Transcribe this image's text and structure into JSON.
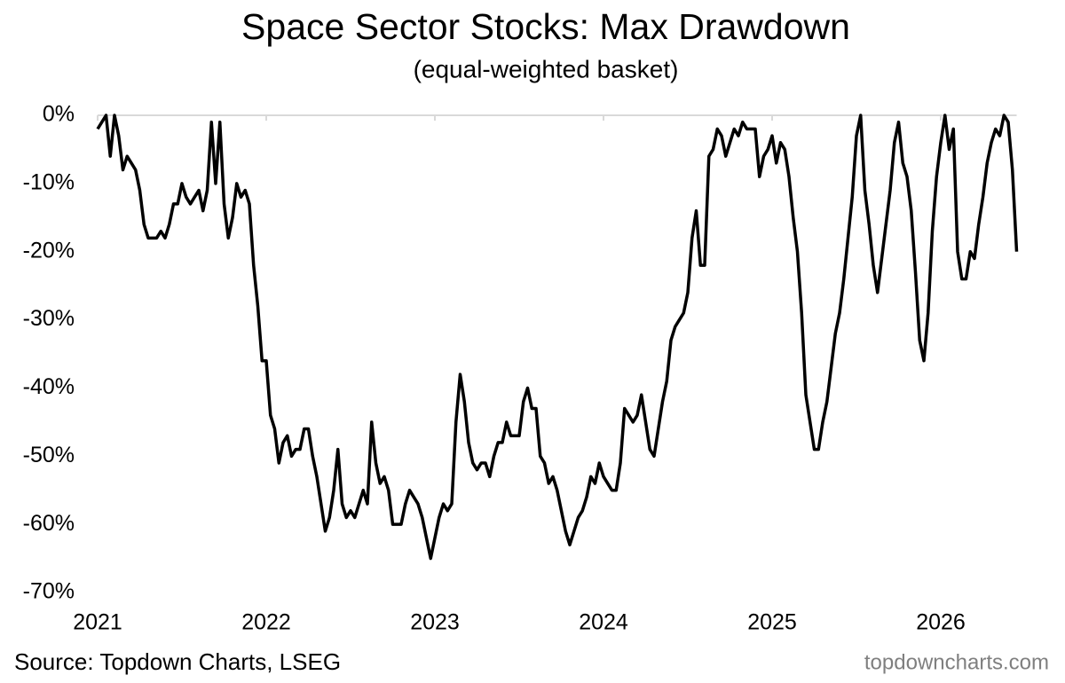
{
  "chart_data": {
    "type": "line",
    "title": "Space Sector Stocks: Max Drawdown",
    "subtitle": "(equal-weighted basket)",
    "source": "Source: Topdown Charts, LSEG",
    "watermark": "topdowncharts.com",
    "xlim": [
      2021,
      2026.45
    ],
    "xticks": [
      2021,
      2022,
      2023,
      2024,
      2025,
      2026
    ],
    "ylim": [
      -70,
      0
    ],
    "yticks": [
      {
        "value": -70,
        "label": "-70%"
      },
      {
        "value": -60,
        "label": "-60%"
      },
      {
        "value": -50,
        "label": "-50%"
      },
      {
        "value": -40,
        "label": "-40%"
      },
      {
        "value": -30,
        "label": "-30%"
      },
      {
        "value": -20,
        "label": "-20%"
      },
      {
        "value": -10,
        "label": "-10%"
      },
      {
        "value": 0,
        "label": "0%"
      }
    ],
    "grid": false,
    "x": [
      2021,
      2021.025,
      2021.05,
      2021.075,
      2021.1,
      2021.125,
      2021.15,
      2021.175,
      2021.2,
      2021.225,
      2021.25,
      2021.275,
      2021.3,
      2021.325,
      2021.35,
      2021.375,
      2021.4,
      2021.425,
      2021.45,
      2021.475,
      2021.5,
      2021.525,
      2021.55,
      2021.575,
      2021.6,
      2021.625,
      2021.65,
      2021.675,
      2021.7,
      2021.725,
      2021.75,
      2021.775,
      2021.8,
      2021.825,
      2021.85,
      2021.875,
      2021.9,
      2021.925,
      2021.95,
      2021.975,
      2022,
      2022.025,
      2022.05,
      2022.075,
      2022.1,
      2022.125,
      2022.15,
      2022.175,
      2022.2,
      2022.225,
      2022.25,
      2022.275,
      2022.3,
      2022.325,
      2022.35,
      2022.375,
      2022.4,
      2022.425,
      2022.45,
      2022.475,
      2022.5,
      2022.525,
      2022.55,
      2022.575,
      2022.6,
      2022.625,
      2022.65,
      2022.675,
      2022.7,
      2022.725,
      2022.75,
      2022.775,
      2022.8,
      2022.825,
      2022.85,
      2022.875,
      2022.9,
      2022.925,
      2022.95,
      2022.975,
      2023,
      2023.025,
      2023.05,
      2023.075,
      2023.1,
      2023.125,
      2023.15,
      2023.175,
      2023.2,
      2023.225,
      2023.25,
      2023.275,
      2023.3,
      2023.325,
      2023.35,
      2023.375,
      2023.4,
      2023.425,
      2023.45,
      2023.475,
      2023.5,
      2023.525,
      2023.55,
      2023.575,
      2023.6,
      2023.625,
      2023.65,
      2023.675,
      2023.7,
      2023.725,
      2023.75,
      2023.775,
      2023.8,
      2023.825,
      2023.85,
      2023.875,
      2023.9,
      2023.925,
      2023.95,
      2023.975,
      2024,
      2024.025,
      2024.05,
      2024.075,
      2024.1,
      2024.125,
      2024.15,
      2024.175,
      2024.2,
      2024.225,
      2024.25,
      2024.275,
      2024.3,
      2024.325,
      2024.35,
      2024.375,
      2024.4,
      2024.425,
      2024.45,
      2024.475,
      2024.5,
      2024.525,
      2024.55,
      2024.575,
      2024.6,
      2024.625,
      2024.65,
      2024.675,
      2024.7,
      2024.725,
      2024.75,
      2024.775,
      2024.8,
      2024.825,
      2024.85,
      2024.875,
      2024.9,
      2024.925,
      2024.95,
      2024.975,
      2025,
      2025.025,
      2025.05,
      2025.075,
      2025.1,
      2025.125,
      2025.15,
      2025.175,
      2025.2,
      2025.225,
      2025.25,
      2025.275,
      2025.3,
      2025.325,
      2025.35,
      2025.375,
      2025.4,
      2025.425,
      2025.45,
      2025.475,
      2025.5,
      2025.525,
      2025.55,
      2025.575,
      2025.6,
      2025.625,
      2025.65,
      2025.675,
      2025.7,
      2025.725,
      2025.75,
      2025.775,
      2025.8,
      2025.825,
      2025.85,
      2025.875,
      2025.9,
      2025.925,
      2025.95,
      2025.975,
      2026,
      2026.025,
      2026.05,
      2026.075,
      2026.1,
      2026.125,
      2026.15,
      2026.175,
      2026.2,
      2026.225,
      2026.25,
      2026.275,
      2026.3,
      2026.325,
      2026.35,
      2026.375,
      2026.4,
      2026.425,
      2026.45
    ],
    "series": [
      {
        "name": "Max Drawdown",
        "color": "#000000",
        "values": [
          -2,
          -1,
          0,
          -6,
          0,
          -3,
          -8,
          -6,
          -7,
          -8,
          -11,
          -16,
          -18,
          -18,
          -18,
          -17,
          -18,
          -16,
          -13,
          -13,
          -10,
          -12,
          -13,
          -12,
          -11,
          -14,
          -11,
          -1,
          -10,
          -1,
          -13,
          -18,
          -15,
          -10,
          -12,
          -11,
          -13,
          -22,
          -28,
          -36,
          -36,
          -44,
          -46,
          -51,
          -48,
          -47,
          -50,
          -49,
          -49,
          -46,
          -46,
          -50,
          -53,
          -57,
          -61,
          -59,
          -55,
          -49,
          -57,
          -59,
          -58,
          -59,
          -57,
          -55,
          -57,
          -45,
          -51,
          -54,
          -53,
          -55,
          -60,
          -60,
          -60,
          -57,
          -55,
          -56,
          -57,
          -59,
          -62,
          -65,
          -62,
          -59,
          -57,
          -58,
          -57,
          -45,
          -38,
          -42,
          -48,
          -51,
          -52,
          -51,
          -51,
          -53,
          -50,
          -48,
          -48,
          -45,
          -47,
          -47,
          -47,
          -42,
          -40,
          -43,
          -43,
          -50,
          -51,
          -54,
          -53,
          -55,
          -58,
          -61,
          -63,
          -61,
          -59,
          -58,
          -56,
          -53,
          -54,
          -51,
          -53,
          -54,
          -55,
          -55,
          -51,
          -43,
          -44,
          -45,
          -44,
          -41,
          -45,
          -49,
          -50,
          -46,
          -42,
          -39,
          -33,
          -31,
          -30,
          -29,
          -26,
          -18,
          -14,
          -22,
          -22,
          -6,
          -5,
          -2,
          -3,
          -6,
          -4,
          -2,
          -3,
          -1,
          -2,
          -2,
          -2,
          -9,
          -6,
          -5,
          -3,
          -7,
          -4,
          -5,
          -9,
          -15,
          -20,
          -29,
          -41,
          -45,
          -49,
          -49,
          -45,
          -42,
          -37,
          -32,
          -29,
          -24,
          -18,
          -12,
          -3,
          0,
          -11,
          -16,
          -22,
          -26,
          -21,
          -16,
          -11,
          -4,
          -1,
          -7,
          -9,
          -14,
          -23,
          -33,
          -36,
          -29,
          -17,
          -9,
          -4,
          0,
          -5,
          -2,
          -20,
          -24,
          -24,
          -20,
          -21,
          -16,
          -12,
          -7,
          -4,
          -2,
          -3,
          0,
          -1,
          -8,
          -20
        ]
      }
    ]
  }
}
